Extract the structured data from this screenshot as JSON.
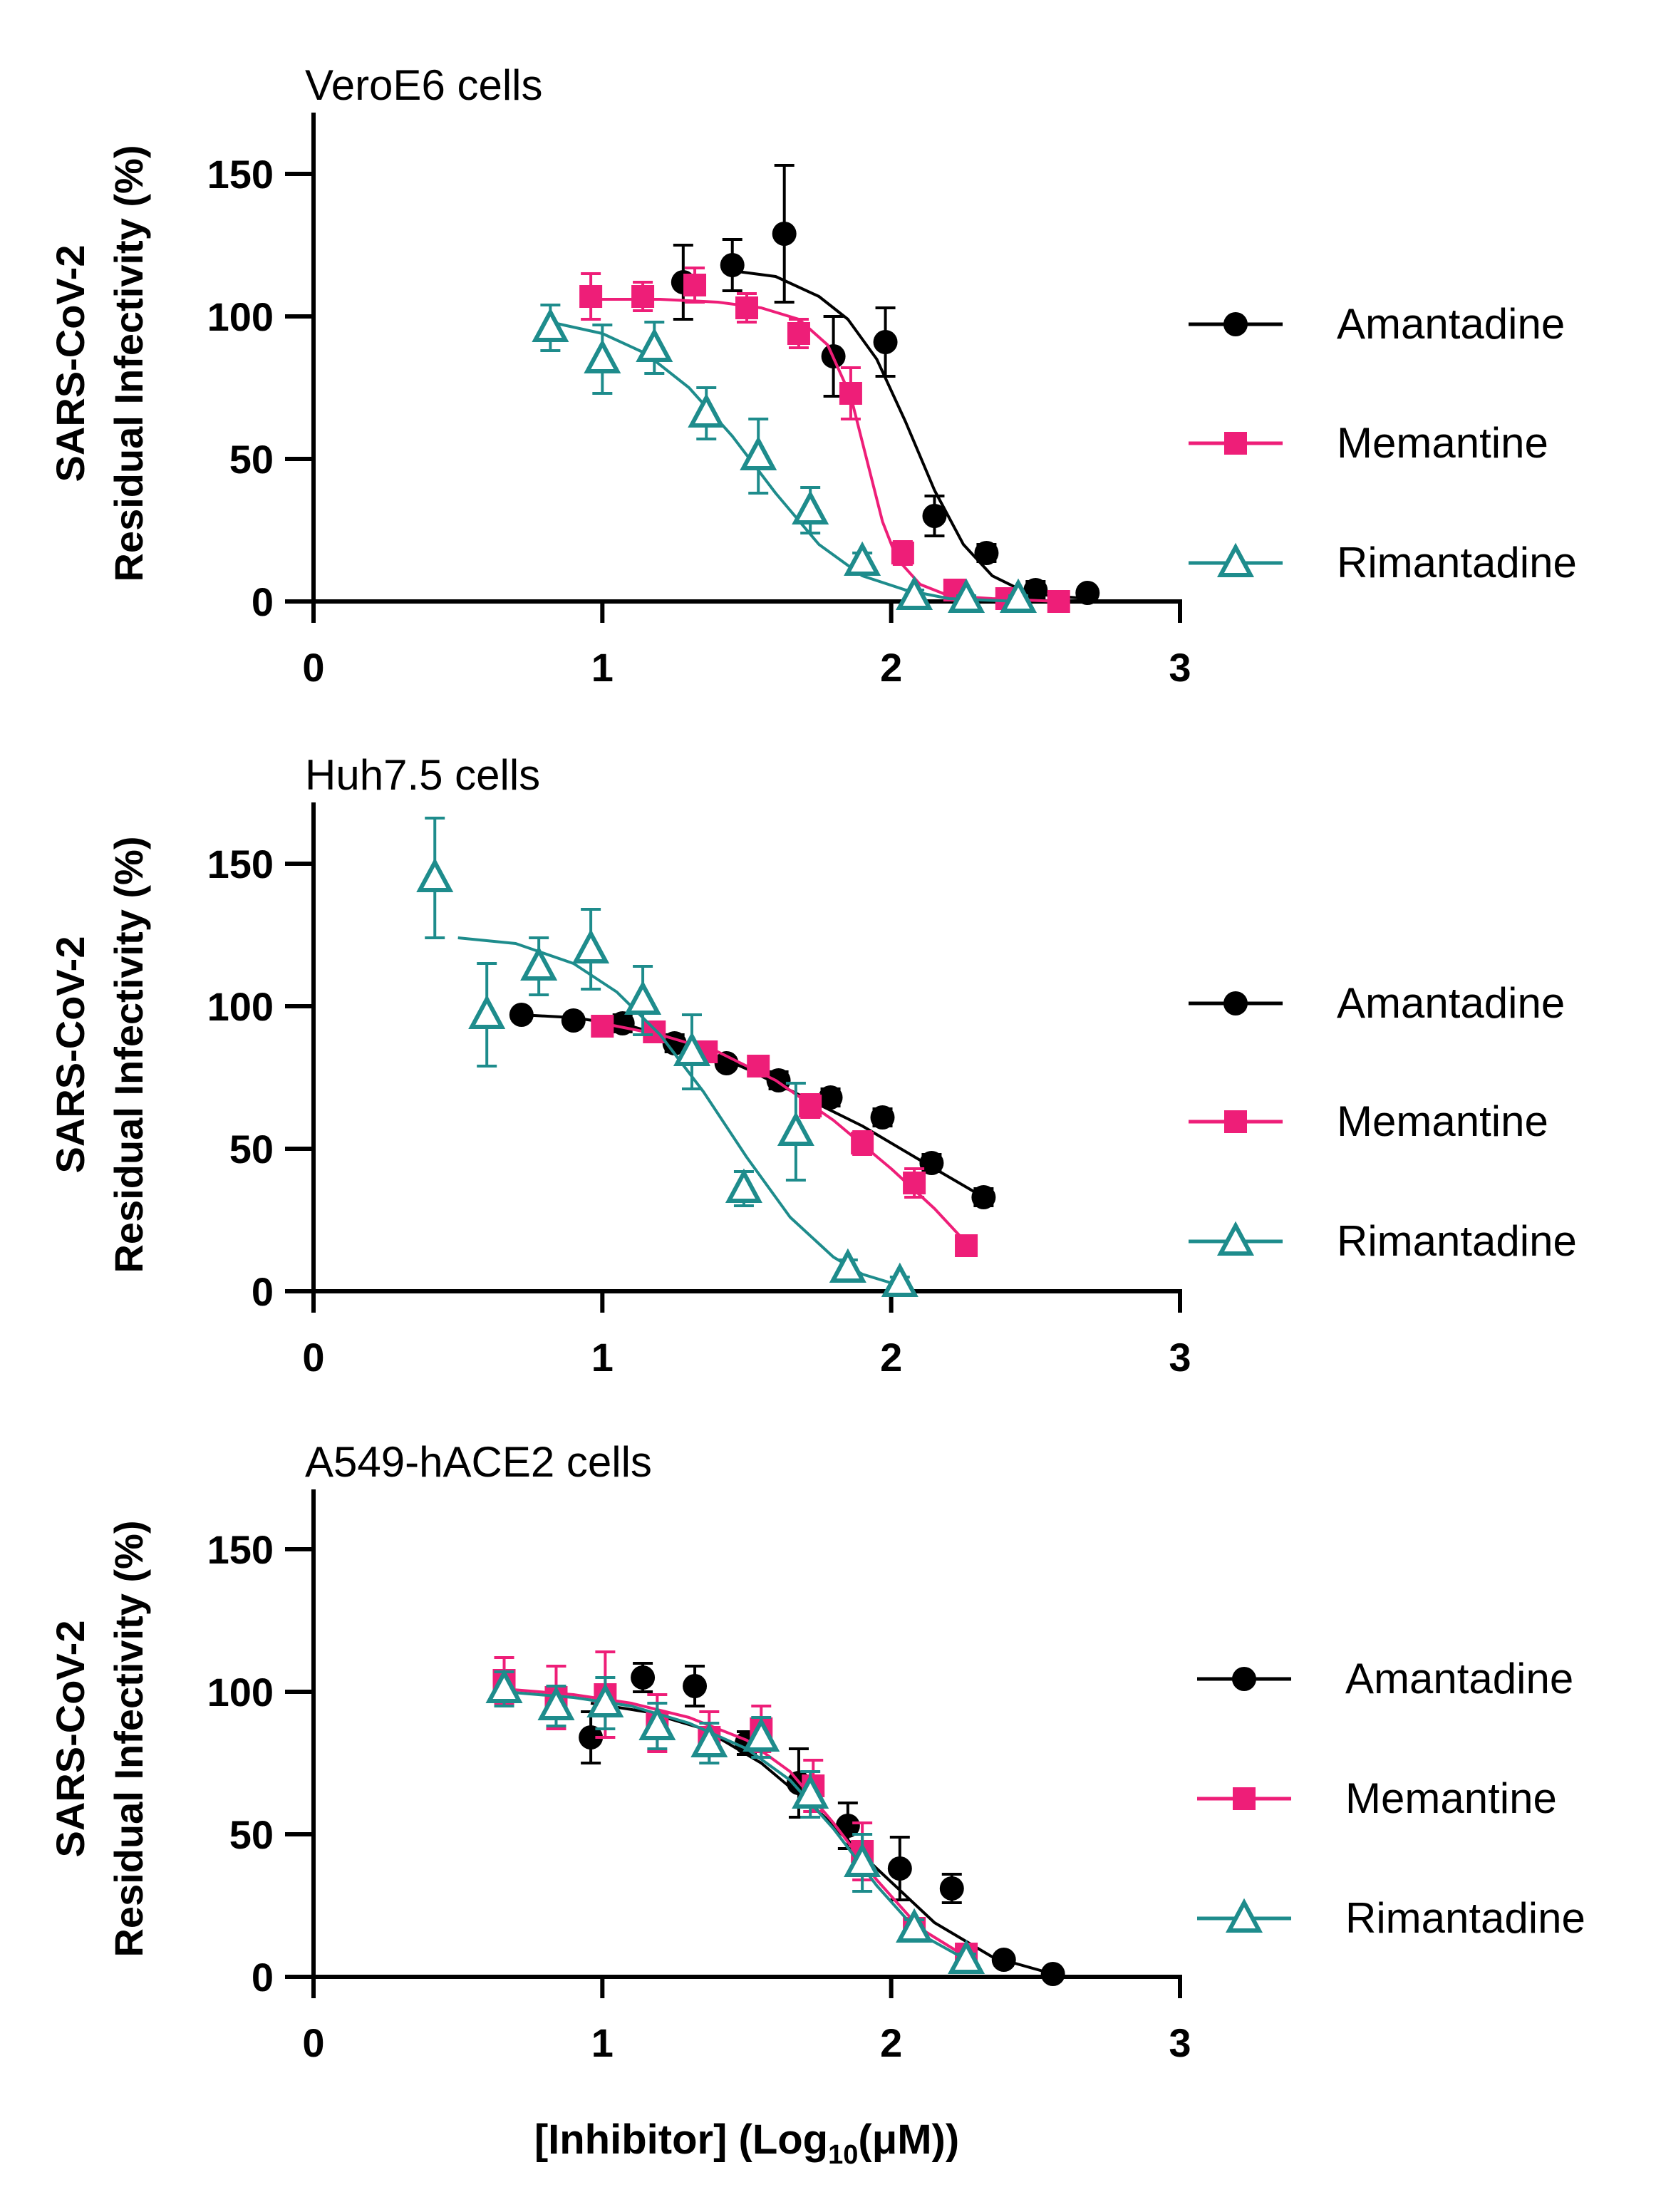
{
  "chart_data": [
    {
      "type": "scatter",
      "title": "VeroE6 cells",
      "ylabel_line1": "SARS-CoV-2",
      "ylabel_line2": "Residual Infectivity (%)",
      "xlim": [
        0,
        3
      ],
      "ylim": [
        0,
        170
      ],
      "xticks": [
        "0",
        "1",
        "2",
        "3"
      ],
      "yticks": [
        "0",
        "50",
        "100",
        "150"
      ],
      "series": [
        {
          "name": "Amantadine",
          "color": "#000000",
          "marker": "circle",
          "x": [
            1.28,
            1.45,
            1.63,
            1.8,
            1.98,
            2.15,
            2.33,
            2.5,
            2.68
          ],
          "y": [
            112,
            118,
            129,
            86,
            91,
            30,
            17,
            4,
            3
          ],
          "err": [
            13,
            9,
            24,
            14,
            12,
            7,
            3,
            3,
            2
          ],
          "fit_x": [
            1.45,
            1.6,
            1.75,
            1.85,
            1.95,
            2.05,
            2.15,
            2.25,
            2.35,
            2.45,
            2.55,
            2.68
          ],
          "fit_y": [
            116,
            114,
            107,
            99,
            85,
            63,
            39,
            20,
            9,
            4,
            2,
            1
          ]
        },
        {
          "name": "Memantine",
          "color": "#EE1E78",
          "marker": "square",
          "x": [
            0.96,
            1.14,
            1.32,
            1.5,
            1.68,
            1.86,
            2.04,
            2.22,
            2.4,
            2.58
          ],
          "y": [
            107,
            107,
            111,
            103,
            94,
            73,
            17,
            4,
            1,
            0
          ],
          "err": [
            8,
            5,
            6,
            5,
            5,
            9,
            4,
            2,
            1,
            1
          ],
          "fit_x": [
            0.96,
            1.2,
            1.4,
            1.55,
            1.68,
            1.78,
            1.86,
            1.92,
            1.97,
            2.02,
            2.1,
            2.2,
            2.35,
            2.58
          ],
          "fit_y": [
            106,
            106,
            105,
            103,
            99,
            90,
            72,
            48,
            28,
            15,
            6,
            2,
            1,
            0
          ]
        },
        {
          "name": "Rimantadine",
          "color": "#1E8C8C",
          "marker": "triangle",
          "x": [
            0.82,
            1.0,
            1.18,
            1.36,
            1.54,
            1.72,
            1.9,
            2.08,
            2.26,
            2.44
          ],
          "y": [
            96,
            85,
            89,
            66,
            51,
            32,
            14,
            2,
            1,
            1
          ],
          "err": [
            8,
            12,
            9,
            9,
            13,
            8,
            3,
            2,
            1,
            1
          ],
          "fit_x": [
            0.82,
            1.0,
            1.15,
            1.3,
            1.45,
            1.6,
            1.75,
            1.9,
            2.05,
            2.2,
            2.44
          ],
          "fit_y": [
            98,
            94,
            87,
            75,
            58,
            38,
            20,
            9,
            4,
            1,
            0
          ]
        }
      ],
      "legend": [
        {
          "series": 0,
          "label": "Amantadine"
        },
        {
          "series": 1,
          "label": "Memantine"
        },
        {
          "series": 2,
          "label": "Rimantadine"
        }
      ]
    },
    {
      "type": "scatter",
      "title": "Huh7.5 cells",
      "ylabel_line1": "SARS-CoV-2",
      "ylabel_line2": "Residual Infectivity (%)",
      "xlim": [
        0,
        3
      ],
      "ylim": [
        0,
        170
      ],
      "xticks": [
        "0",
        "1",
        "2",
        "3"
      ],
      "yticks": [
        "0",
        "50",
        "100",
        "150"
      ],
      "series": [
        {
          "name": "Amantadine",
          "color": "#000000",
          "marker": "circle",
          "x": [
            0.72,
            0.9,
            1.07,
            1.25,
            1.43,
            1.61,
            1.79,
            1.97,
            2.14,
            2.32
          ],
          "y": [
            97,
            95,
            94,
            87,
            80,
            74,
            68,
            61,
            45,
            33
          ],
          "err": [
            2,
            2,
            3,
            3,
            2,
            3,
            3,
            3,
            3,
            3
          ],
          "fit_x": [
            0.72,
            0.9,
            1.1,
            1.3,
            1.5,
            1.7,
            1.9,
            2.1,
            2.32
          ],
          "fit_y": [
            97,
            96,
            93,
            87,
            78,
            68,
            58,
            46,
            33
          ]
        },
        {
          "name": "Memantine",
          "color": "#EE1E78",
          "marker": "square",
          "x": [
            1.0,
            1.18,
            1.36,
            1.54,
            1.72,
            1.9,
            2.08,
            2.26
          ],
          "y": [
            93,
            91,
            84,
            79,
            65,
            52,
            38,
            16
          ],
          "err": [
            3,
            3,
            3,
            3,
            4,
            4,
            5,
            2
          ],
          "fit_x": [
            1.0,
            1.2,
            1.4,
            1.6,
            1.8,
            2.0,
            2.15,
            2.26
          ],
          "fit_y": [
            94,
            90,
            84,
            74,
            60,
            43,
            29,
            17
          ]
        },
        {
          "name": "Rimantadine",
          "color": "#1E8C8C",
          "marker": "triangle",
          "x": [
            0.42,
            0.6,
            0.78,
            0.96,
            1.14,
            1.31,
            1.49,
            1.67,
            1.85,
            2.03
          ],
          "y": [
            145,
            97,
            114,
            120,
            102,
            84,
            36,
            56,
            8,
            3
          ],
          "err": [
            21,
            18,
            10,
            14,
            12,
            13,
            6,
            17,
            3,
            2
          ],
          "fit_x": [
            0.5,
            0.7,
            0.9,
            1.05,
            1.2,
            1.35,
            1.5,
            1.65,
            1.8,
            1.9,
            2.03
          ],
          "fit_y": [
            124,
            122,
            115,
            105,
            90,
            70,
            47,
            26,
            12,
            6,
            2
          ]
        }
      ],
      "legend": [
        {
          "series": 0,
          "label": "Amantadine"
        },
        {
          "series": 1,
          "label": "Memantine"
        },
        {
          "series": 2,
          "label": "Rimantadine"
        }
      ]
    },
    {
      "type": "scatter",
      "title": "A549-hACE2 cells",
      "ylabel_line1": "SARS-CoV-2",
      "ylabel_line2": "Residual Infectivity (%)",
      "xlim": [
        0,
        3
      ],
      "ylim": [
        0,
        170
      ],
      "xticks": [
        "0",
        "1",
        "2",
        "3"
      ],
      "yticks": [
        "0",
        "50",
        "100",
        "150"
      ],
      "xlabel_parts": {
        "pre": "[Inhibitor] (Log",
        "sub": "10",
        "post": "(μM))"
      },
      "series": [
        {
          "name": "Amantadine",
          "color": "#000000",
          "marker": "circle",
          "x": [
            0.96,
            1.14,
            1.32,
            1.5,
            1.68,
            1.85,
            2.03,
            2.21,
            2.39,
            2.56
          ],
          "y": [
            84,
            105,
            102,
            82,
            68,
            53,
            38,
            31,
            6,
            1
          ],
          "err": [
            9,
            5,
            7,
            4,
            12,
            8,
            11,
            5,
            2,
            1
          ],
          "fit_x": [
            0.96,
            1.15,
            1.35,
            1.55,
            1.75,
            1.95,
            2.15,
            2.35,
            2.56
          ],
          "fit_y": [
            96,
            93,
            87,
            75,
            58,
            38,
            19,
            7,
            1
          ]
        },
        {
          "name": "Memantine",
          "color": "#EE1E78",
          "marker": "square",
          "x": [
            0.66,
            0.84,
            1.01,
            1.19,
            1.37,
            1.55,
            1.73,
            1.9,
            2.08,
            2.26
          ],
          "y": [
            104,
            98,
            99,
            89,
            84,
            87,
            67,
            44,
            17,
            8
          ],
          "err": [
            8,
            11,
            15,
            10,
            9,
            8,
            9,
            10,
            3,
            3
          ],
          "fit_x": [
            0.66,
            0.9,
            1.1,
            1.3,
            1.5,
            1.65,
            1.8,
            1.95,
            2.1,
            2.26
          ],
          "fit_y": [
            101,
            99,
            96,
            91,
            83,
            72,
            54,
            34,
            17,
            7
          ]
        },
        {
          "name": "Rimantadine",
          "color": "#1E8C8C",
          "marker": "triangle",
          "x": [
            0.66,
            0.84,
            1.01,
            1.19,
            1.37,
            1.55,
            1.72,
            1.9,
            2.08,
            2.26
          ],
          "y": [
            101,
            95,
            96,
            88,
            82,
            84,
            64,
            40,
            17,
            6
          ],
          "err": [
            6,
            7,
            9,
            8,
            7,
            7,
            8,
            10,
            3,
            2
          ],
          "fit_x": [
            0.66,
            0.9,
            1.1,
            1.3,
            1.5,
            1.65,
            1.8,
            1.95,
            2.1,
            2.26
          ],
          "fit_y": [
            100,
            98,
            95,
            89,
            80,
            69,
            52,
            32,
            15,
            6
          ]
        }
      ],
      "legend": [
        {
          "series": 0,
          "label": "Amantadine"
        },
        {
          "series": 1,
          "label": "Memantine"
        },
        {
          "series": 2,
          "label": "Rimantadine"
        }
      ]
    }
  ]
}
